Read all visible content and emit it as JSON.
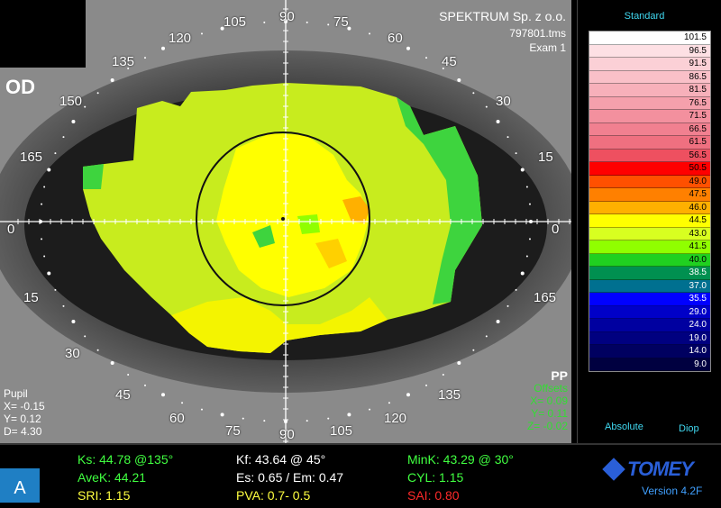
{
  "map": {
    "eye": "OD",
    "company": "SPEKTRUM Sp. z o.o.",
    "filename": "797801.tms",
    "exam": "Exam 1",
    "angles": {
      "top": [
        "135",
        "120",
        "105",
        "90",
        "75",
        "60",
        "45"
      ],
      "left": [
        "150",
        "165",
        "0",
        "15"
      ],
      "right": [
        "30",
        "15",
        "0",
        "165"
      ],
      "bottom": [
        "30",
        "45",
        "60",
        "75",
        "90",
        "105",
        "120",
        "135"
      ]
    },
    "pupil": {
      "title": "Pupil",
      "x": "X= -0.15",
      "y": "Y=  0.12",
      "d": "D=  4.30"
    },
    "offsets": {
      "pp": "PP",
      "title": "Offsets",
      "x": "X=  0.09",
      "y": "Y=  0.11",
      "z": "Z= -0.02"
    }
  },
  "legend": {
    "title": "Standard",
    "absolute": "Absolute",
    "diop": "Diop",
    "steps": [
      {
        "value": "101.5",
        "color": "#ffffff"
      },
      {
        "value": "96.5",
        "color": "#fde0e4"
      },
      {
        "value": "91.5",
        "color": "#fbd0d6"
      },
      {
        "value": "86.5",
        "color": "#f9c0c8"
      },
      {
        "value": "81.5",
        "color": "#f7b0ba"
      },
      {
        "value": "76.5",
        "color": "#f5a0ac"
      },
      {
        "value": "71.5",
        "color": "#f3909e"
      },
      {
        "value": "66.5",
        "color": "#f18090"
      },
      {
        "value": "61.5",
        "color": "#ef7080"
      },
      {
        "value": "56.5",
        "color": "#ee5060"
      },
      {
        "value": "50.5",
        "color": "#ff0000"
      },
      {
        "value": "49.0",
        "color": "#ff5000"
      },
      {
        "value": "47.5",
        "color": "#ff8000"
      },
      {
        "value": "46.0",
        "color": "#ffb000"
      },
      {
        "value": "44.5",
        "color": "#ffff00"
      },
      {
        "value": "43.0",
        "color": "#d8ff20"
      },
      {
        "value": "41.5",
        "color": "#90ff00"
      },
      {
        "value": "40.0",
        "color": "#20d020"
      },
      {
        "value": "38.5",
        "color": "#009050"
      },
      {
        "value": "37.0",
        "color": "#007090"
      },
      {
        "value": "35.5",
        "color": "#0000ff"
      },
      {
        "value": "29.0",
        "color": "#0000c8"
      },
      {
        "value": "24.0",
        "color": "#0000a0"
      },
      {
        "value": "19.0",
        "color": "#000080"
      },
      {
        "value": "14.0",
        "color": "#000060"
      },
      {
        "value": "9.0",
        "color": "#000040"
      }
    ]
  },
  "footer": {
    "badge": "A",
    "ks": "Ks: 44.78 @135°",
    "kf": "Kf: 43.64 @ 45°",
    "mink": "MinK: 43.29 @ 30°",
    "avek": "AveK: 44.21",
    "es_em": "Es: 0.65 / Em: 0.47",
    "cyl": "CYL:  1.15",
    "sri": "SRI:  1.15",
    "pva": "PVA:  0.7-  0.5",
    "sai": "SAI: 0.80",
    "brand": "TOMEY",
    "version": "Version 4.2F"
  }
}
